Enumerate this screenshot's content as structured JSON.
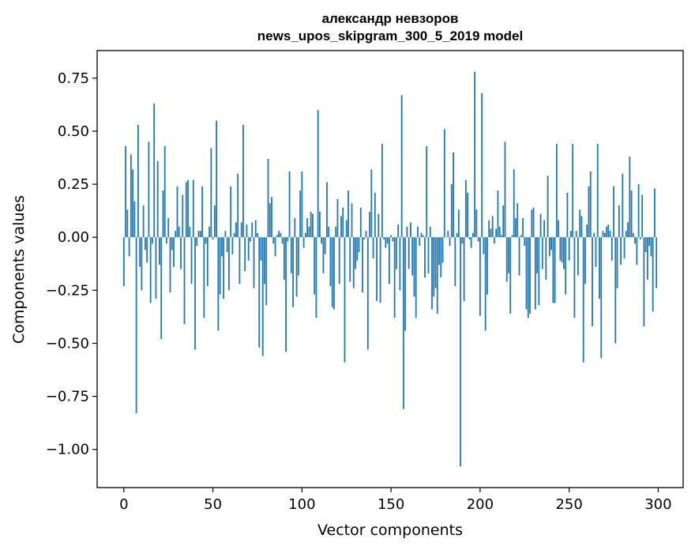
{
  "chart_data": {
    "type": "bar",
    "title_line1": "александр невзоров",
    "title_line2": "news_upos_skipgram_300_5_2019 model",
    "xlabel": "Vector components",
    "ylabel": "Components values",
    "xlim": [
      -15,
      314
    ],
    "ylim": [
      -1.18,
      0.88
    ],
    "xticks": [
      0,
      50,
      100,
      150,
      200,
      250,
      300
    ],
    "xtick_labels": [
      "0",
      "50",
      "100",
      "150",
      "200",
      "250",
      "300"
    ],
    "yticks": [
      0.75,
      0.5,
      0.25,
      0.0,
      -0.25,
      -0.5,
      -0.75,
      -1.0
    ],
    "ytick_labels": [
      "0.75",
      "0.50",
      "0.25",
      "0.00",
      "−0.25",
      "−0.50",
      "−0.75",
      "−1.00"
    ],
    "bar_color": "#1f77b4",
    "x_start": 0,
    "values": [
      -0.23,
      0.43,
      0.13,
      -0.09,
      0.39,
      0.32,
      0.17,
      -0.83,
      0.53,
      -0.14,
      -0.25,
      0.15,
      -0.06,
      -0.12,
      0.45,
      -0.31,
      -0.03,
      0.63,
      -0.29,
      0.36,
      -0.13,
      -0.48,
      0.22,
      0.43,
      -0.03,
      0.09,
      -0.26,
      -0.06,
      -0.14,
      0.03,
      0.24,
      0.05,
      -0.15,
      0.2,
      -0.41,
      0.26,
      0.27,
      0.05,
      -0.22,
      0.27,
      -0.53,
      -0.04,
      0.03,
      0.03,
      0.24,
      -0.38,
      -0.03,
      -0.23,
      0.05,
      0.42,
      -0.01,
      0.15,
      0.55,
      -0.44,
      -0.27,
      -0.09,
      -0.29,
      0.03,
      -0.07,
      -0.25,
      0.24,
      -0.08,
      0.02,
      0.07,
      0.3,
      -0.22,
      0.07,
      0.53,
      -0.16,
      0.06,
      -0.11,
      -0.02,
      0.07,
      -0.24,
      0.08,
      0.02,
      -0.52,
      -0.11,
      -0.56,
      -0.22,
      -0.32,
      0.37,
      0.16,
      0.19,
      -0.03,
      -0.09,
      0.01,
      0.03,
      0.02,
      -0.03,
      -0.2,
      -0.54,
      -0.02,
      0.31,
      -0.17,
      -0.33,
      0.09,
      -0.28,
      -0.18,
      0.22,
      0.31,
      -0.05,
      0.02,
      0.09,
      0.05,
      0.12,
      0.11,
      -0.27,
      -0.38,
      0.6,
      0.12,
      -0.03,
      -0.17,
      -0.08,
      0.26,
      0.05,
      -0.23,
      -0.33,
      -0.34,
      0.05,
      0.18,
      -0.22,
      0.1,
      0.14,
      -0.59,
      0.08,
      0.22,
      -0.21,
      0.16,
      -0.24,
      -0.15,
      -0.11,
      -0.07,
      0.14,
      -0.26,
      -0.01,
      0.03,
      -0.53,
      0.12,
      0.32,
      -0.1,
      0.21,
      -0.3,
      0.11,
      -0.31,
      0.44,
      -0.01,
      -0.05,
      -0.03,
      -0.22,
      0.01,
      -0.02,
      -0.38,
      -0.15,
      0.06,
      -0.25,
      0.67,
      -0.81,
      -0.44,
      0.05,
      -0.15,
      0.07,
      -0.18,
      -0.28,
      -0.38,
      0.05,
      -0.04,
      0.02,
      0.01,
      -0.19,
      0.43,
      -0.17,
      0.05,
      -0.34,
      -0.28,
      -0.24,
      -0.36,
      -0.13,
      -0.19,
      -0.12,
      0.51,
      0.0,
      0.03,
      -0.04,
      0.25,
      0.4,
      -0.23,
      0.02,
      0.13,
      -1.08,
      -0.03,
      -0.3,
      0.27,
      0.21,
      -0.01,
      -0.05,
      0.02,
      0.78,
      0.13,
      -0.02,
      -0.37,
      0.68,
      -0.08,
      -0.44,
      -0.27,
      0.08,
      0.04,
      0.1,
      -0.03,
      0.04,
      0.22,
      0.05,
      0.01,
      0.15,
      0.45,
      -0.21,
      -0.17,
      -0.36,
      0.01,
      0.32,
      0.09,
      0.16,
      -0.18,
      0.01,
      0.09,
      -0.04,
      -0.34,
      -0.38,
      -0.36,
      0.13,
      0.14,
      -0.34,
      -0.17,
      -0.32,
      0.11,
      -0.15,
      0.08,
      -0.2,
      0.29,
      -0.09,
      -0.06,
      -0.31,
      -0.31,
      0.44,
      0.08,
      -0.11,
      -0.12,
      -0.15,
      -0.27,
      0.21,
      -0.11,
      0.03,
      0.44,
      -0.38,
      0.03,
      -0.18,
      0.13,
      0.1,
      -0.59,
      -0.22,
      0.06,
      0.24,
      0.31,
      -0.42,
      0.02,
      -0.14,
      0.44,
      -0.29,
      -0.57,
      0.03,
      0.02,
      0.05,
      0.06,
      0.03,
      -0.11,
      0.24,
      -0.5,
      -0.24,
      0.15,
      -0.13,
      0.3,
      -0.1,
      0.03,
      0.07,
      0.38,
      0.22,
      0.02,
      -0.03,
      -0.13,
      0.25,
      -0.01,
      0.2,
      -0.42,
      -0.07,
      -0.2,
      -0.04,
      -0.09,
      -0.35,
      0.23,
      -0.24
    ]
  }
}
